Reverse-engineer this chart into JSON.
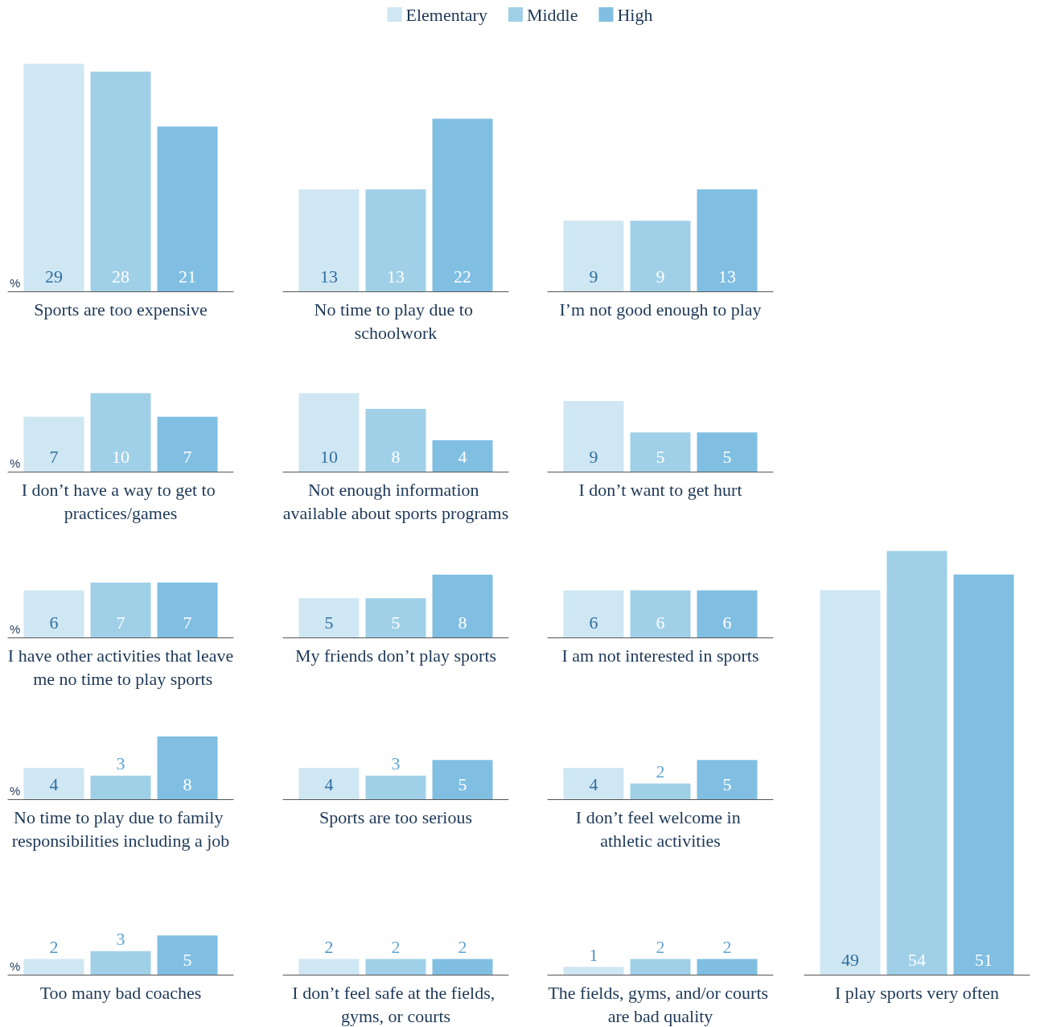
{
  "chart_data": [
    {
      "type": "bar",
      "xlabel": "Sports are too expensive",
      "ylabel": "%",
      "categories": [
        null
      ],
      "legend": "top",
      "data_labels": true,
      "series": [
        {
          "name": "Elementary",
          "color": "#cfe6f3",
          "values": [
            29
          ]
        },
        {
          "name": "Middle",
          "color": "#a0d0e8",
          "values": [
            28
          ]
        },
        {
          "name": "High",
          "color": "#80bfe2",
          "values": [
            21
          ]
        }
      ]
    },
    {
      "type": "bar",
      "xlabel": "No time to play due to schoolwork",
      "categories": [
        null
      ],
      "data_labels": true,
      "series": [
        {
          "color": "#cfe6f3",
          "values": [
            13
          ]
        },
        {
          "color": "#a0d0e8",
          "values": [
            13
          ]
        },
        {
          "color": "#80bfe2",
          "values": [
            22
          ]
        }
      ]
    },
    {
      "type": "bar",
      "xlabel": "I’m not good enough to play",
      "categories": [
        null
      ],
      "data_labels": true,
      "series": [
        {
          "color": "#cfe6f3",
          "values": [
            9
          ]
        },
        {
          "color": "#a0d0e8",
          "values": [
            9
          ]
        },
        {
          "color": "#80bfe2",
          "values": [
            13
          ]
        }
      ]
    },
    {
      "type": "bar",
      "xlabel": "I don’t have a way to get to practices/games",
      "ylabel": "%",
      "categories": [
        null
      ],
      "data_labels": true,
      "series": [
        {
          "color": "#cfe6f3",
          "values": [
            7
          ]
        },
        {
          "color": "#a0d0e8",
          "values": [
            10
          ]
        },
        {
          "color": "#80bfe2",
          "values": [
            7
          ]
        }
      ]
    },
    {
      "type": "bar",
      "xlabel": "Not enough information available about sports programs",
      "categories": [
        null
      ],
      "data_labels": true,
      "series": [
        {
          "color": "#cfe6f3",
          "values": [
            10
          ]
        },
        {
          "color": "#a0d0e8",
          "values": [
            8
          ]
        },
        {
          "color": "#80bfe2",
          "values": [
            4
          ]
        }
      ]
    },
    {
      "type": "bar",
      "xlabel": "I don’t want to get hurt",
      "categories": [
        null
      ],
      "data_labels": true,
      "series": [
        {
          "color": "#cfe6f3",
          "values": [
            9
          ]
        },
        {
          "color": "#a0d0e8",
          "values": [
            5
          ]
        },
        {
          "color": "#80bfe2",
          "values": [
            5
          ]
        }
      ]
    },
    {
      "type": "bar",
      "xlabel": "I have other activities that leave me no time to play sports",
      "ylabel": "%",
      "categories": [
        null
      ],
      "data_labels": true,
      "series": [
        {
          "color": "#cfe6f3",
          "values": [
            6
          ]
        },
        {
          "color": "#a0d0e8",
          "values": [
            7
          ]
        },
        {
          "color": "#80bfe2",
          "values": [
            7
          ]
        }
      ]
    },
    {
      "type": "bar",
      "xlabel": "My friends don’t play sports",
      "categories": [
        null
      ],
      "data_labels": true,
      "series": [
        {
          "color": "#cfe6f3",
          "values": [
            5
          ]
        },
        {
          "color": "#a0d0e8",
          "values": [
            5
          ]
        },
        {
          "color": "#80bfe2",
          "values": [
            8
          ]
        }
      ]
    },
    {
      "type": "bar",
      "xlabel": "I am not interested in sports",
      "categories": [
        null
      ],
      "data_labels": true,
      "series": [
        {
          "color": "#cfe6f3",
          "values": [
            6
          ]
        },
        {
          "color": "#a0d0e8",
          "values": [
            6
          ]
        },
        {
          "color": "#80bfe2",
          "values": [
            6
          ]
        }
      ]
    },
    {
      "type": "bar",
      "xlabel": "No time to play due to family responsibilities including a job",
      "ylabel": "%",
      "categories": [
        null
      ],
      "data_labels": true,
      "series": [
        {
          "color": "#cfe6f3",
          "values": [
            4
          ]
        },
        {
          "color": "#a0d0e8",
          "values": [
            3
          ]
        },
        {
          "color": "#80bfe2",
          "values": [
            8
          ]
        }
      ]
    },
    {
      "type": "bar",
      "xlabel": "Sports are too serious",
      "categories": [
        null
      ],
      "data_labels": true,
      "series": [
        {
          "color": "#cfe6f3",
          "values": [
            4
          ]
        },
        {
          "color": "#a0d0e8",
          "values": [
            3
          ]
        },
        {
          "color": "#80bfe2",
          "values": [
            5
          ]
        }
      ]
    },
    {
      "type": "bar",
      "xlabel": "I don’t feel welcome in athletic activities",
      "categories": [
        null
      ],
      "data_labels": true,
      "series": [
        {
          "color": "#cfe6f3",
          "values": [
            4
          ]
        },
        {
          "color": "#a0d0e8",
          "values": [
            2
          ]
        },
        {
          "color": "#80bfe2",
          "values": [
            5
          ]
        }
      ]
    },
    {
      "type": "bar",
      "xlabel": "Too many bad coaches",
      "ylabel": "%",
      "categories": [
        null
      ],
      "data_labels": true,
      "series": [
        {
          "color": "#cfe6f3",
          "values": [
            2
          ]
        },
        {
          "color": "#a0d0e8",
          "values": [
            3
          ]
        },
        {
          "color": "#80bfe2",
          "values": [
            5
          ]
        }
      ]
    },
    {
      "type": "bar",
      "xlabel": "I don’t feel safe at the fields, gyms, or courts",
      "categories": [
        null
      ],
      "data_labels": true,
      "series": [
        {
          "color": "#cfe6f3",
          "values": [
            2
          ]
        },
        {
          "color": "#a0d0e8",
          "values": [
            2
          ]
        },
        {
          "color": "#80bfe2",
          "values": [
            2
          ]
        }
      ]
    },
    {
      "type": "bar",
      "xlabel": "The fields, gyms, and/or courts are bad quality",
      "categories": [
        null
      ],
      "data_labels": true,
      "series": [
        {
          "color": "#cfe6f3",
          "values": [
            1
          ]
        },
        {
          "color": "#a0d0e8",
          "values": [
            2
          ]
        },
        {
          "color": "#80bfe2",
          "values": [
            2
          ]
        }
      ]
    },
    {
      "type": "bar",
      "xlabel": "I play sports very often",
      "categories": [
        null
      ],
      "data_labels": true,
      "series": [
        {
          "color": "#cfe6f3",
          "values": [
            49
          ]
        },
        {
          "color": "#a0d0e8",
          "values": [
            54
          ]
        },
        {
          "color": "#80bfe2",
          "values": [
            51
          ]
        }
      ]
    }
  ]
}
